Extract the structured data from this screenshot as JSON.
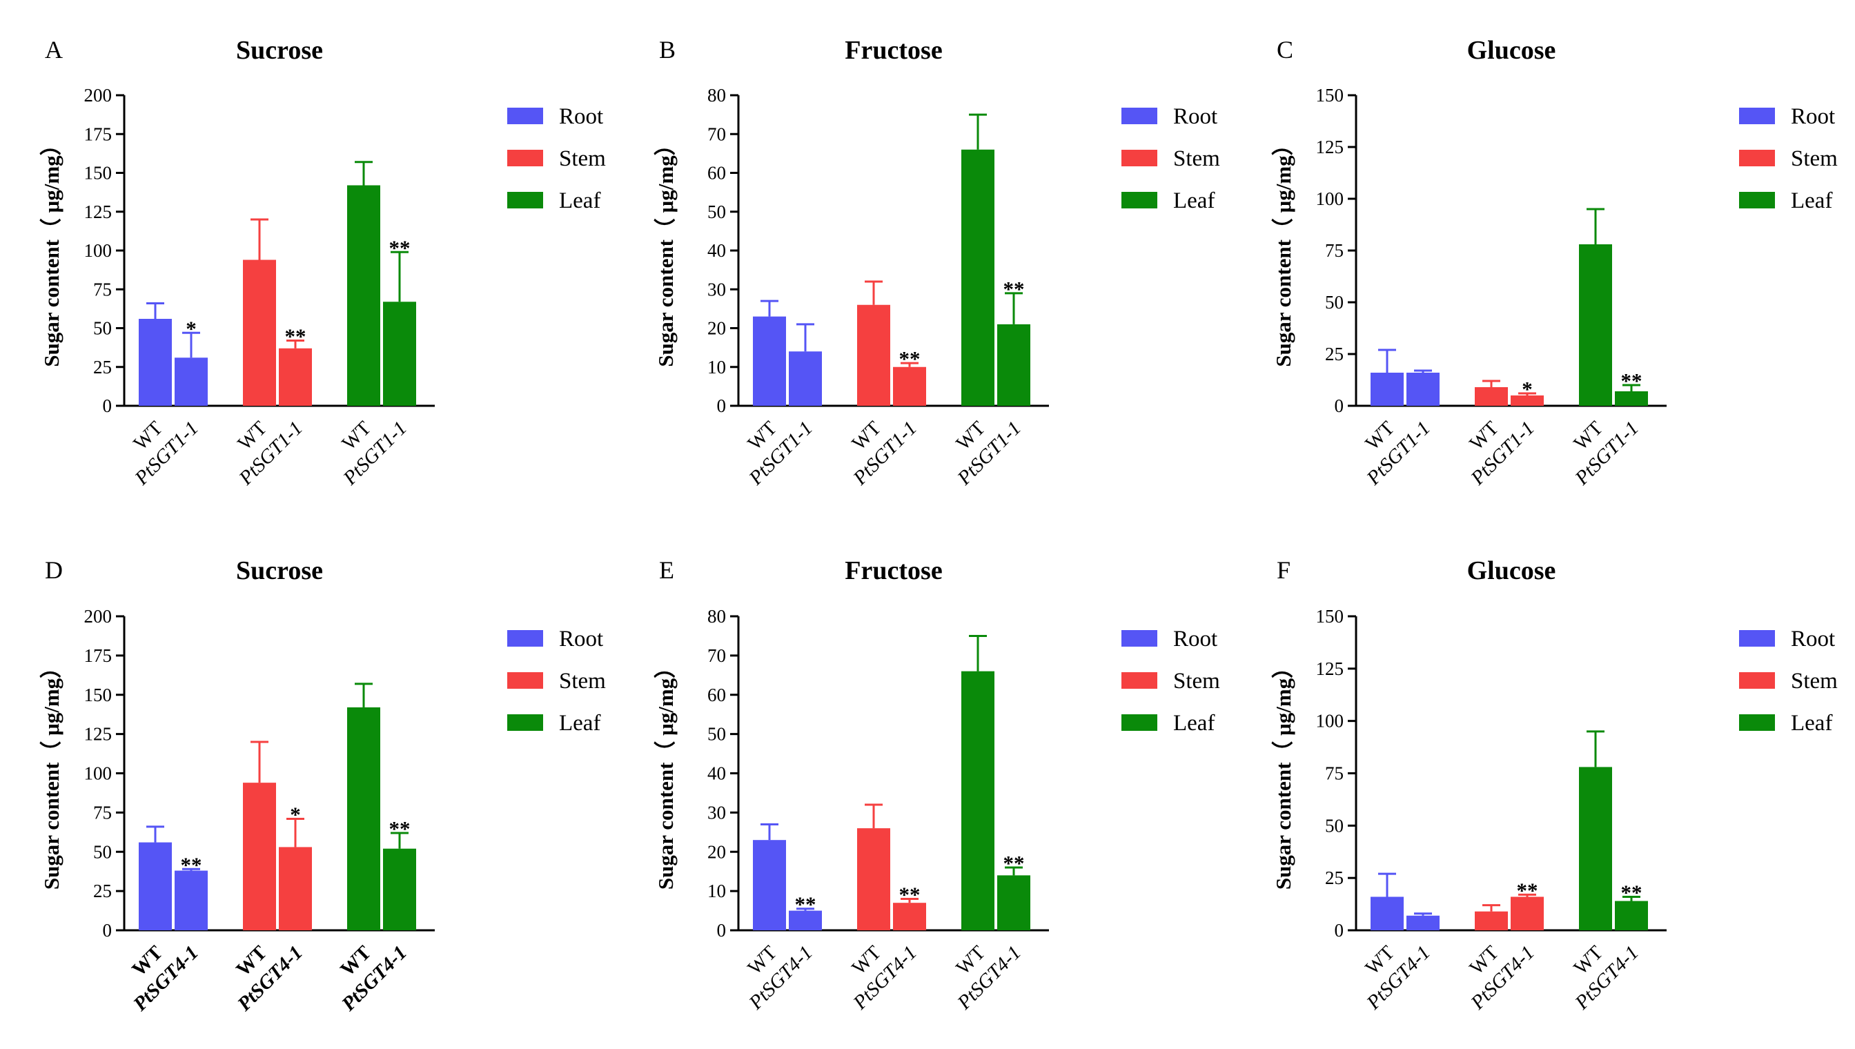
{
  "figure": {
    "legend": [
      "Root",
      "Stem",
      "Leaf"
    ],
    "colors": {
      "Root": "#5555f5",
      "Stem": "#f54040",
      "Leaf": "#0a8a0a"
    }
  },
  "chart_data": [
    {
      "panel": "A",
      "title": "Sucrose",
      "type": "bar",
      "ylabel": "Sugar content（ μg/mg）",
      "ylim": [
        0,
        200
      ],
      "yticks": [
        0,
        25,
        50,
        75,
        100,
        125,
        150,
        175,
        200
      ],
      "groups": [
        "Root",
        "Stem",
        "Leaf"
      ],
      "x_labels": [
        "WT",
        "PtSGT1-1"
      ],
      "x_label_bold": false,
      "series": [
        {
          "name": "WT",
          "values": [
            56,
            94,
            142
          ],
          "errors": [
            10,
            26,
            15
          ],
          "sig": [
            "",
            "",
            ""
          ]
        },
        {
          "name": "PtSGT1-1",
          "values": [
            31,
            37,
            67
          ],
          "errors": [
            16,
            5,
            32
          ],
          "sig": [
            "*",
            "**",
            "**"
          ]
        }
      ]
    },
    {
      "panel": "B",
      "title": "Fructose",
      "type": "bar",
      "ylabel": "Sugar content（ μg/mg）",
      "ylim": [
        0,
        80
      ],
      "yticks": [
        0,
        10,
        20,
        30,
        40,
        50,
        60,
        70,
        80
      ],
      "groups": [
        "Root",
        "Stem",
        "Leaf"
      ],
      "x_labels": [
        "WT",
        "PtSGT1-1"
      ],
      "x_label_bold": false,
      "series": [
        {
          "name": "WT",
          "values": [
            23,
            26,
            66
          ],
          "errors": [
            4,
            6,
            9
          ],
          "sig": [
            "",
            "",
            ""
          ]
        },
        {
          "name": "PtSGT1-1",
          "values": [
            14,
            10,
            21
          ],
          "errors": [
            7,
            1,
            8
          ],
          "sig": [
            "",
            "**",
            "**"
          ]
        }
      ]
    },
    {
      "panel": "C",
      "title": "Glucose",
      "type": "bar",
      "ylabel": "Sugar content（ μg/mg）",
      "ylim": [
        0,
        150
      ],
      "yticks": [
        0,
        25,
        50,
        75,
        100,
        125,
        150
      ],
      "groups": [
        "Root",
        "Stem",
        "Leaf"
      ],
      "x_labels": [
        "WT",
        "PtSGT1-1"
      ],
      "x_label_bold": false,
      "series": [
        {
          "name": "WT",
          "values": [
            16,
            9,
            78
          ],
          "errors": [
            11,
            3,
            17
          ],
          "sig": [
            "",
            "",
            ""
          ]
        },
        {
          "name": "PtSGT1-1",
          "values": [
            16,
            5,
            7
          ],
          "errors": [
            1,
            1,
            3
          ],
          "sig": [
            "",
            "*",
            "**"
          ]
        }
      ]
    },
    {
      "panel": "D",
      "title": "Sucrose",
      "type": "bar",
      "ylabel": "Sugar content（ μg/mg）",
      "ylim": [
        0,
        200
      ],
      "yticks": [
        0,
        25,
        50,
        75,
        100,
        125,
        150,
        175,
        200
      ],
      "groups": [
        "Root",
        "Stem",
        "Leaf"
      ],
      "x_labels": [
        "WT",
        "PtSGT4-1"
      ],
      "x_label_bold": true,
      "series": [
        {
          "name": "WT",
          "values": [
            56,
            94,
            142
          ],
          "errors": [
            10,
            26,
            15
          ],
          "sig": [
            "",
            "",
            ""
          ]
        },
        {
          "name": "PtSGT4-1",
          "values": [
            38,
            53,
            52
          ],
          "errors": [
            1,
            18,
            10
          ],
          "sig": [
            "**",
            "*",
            "**"
          ]
        }
      ]
    },
    {
      "panel": "E",
      "title": "Fructose",
      "type": "bar",
      "ylabel": "Sugar content（ μg/mg）",
      "ylim": [
        0,
        80
      ],
      "yticks": [
        0,
        10,
        20,
        30,
        40,
        50,
        60,
        70,
        80
      ],
      "groups": [
        "Root",
        "Stem",
        "Leaf"
      ],
      "x_labels": [
        "WT",
        "PtSGT4-1"
      ],
      "x_label_bold": false,
      "series": [
        {
          "name": "WT",
          "values": [
            23,
            26,
            66
          ],
          "errors": [
            4,
            6,
            9
          ],
          "sig": [
            "",
            "",
            ""
          ]
        },
        {
          "name": "PtSGT4-1",
          "values": [
            5,
            7,
            14
          ],
          "errors": [
            0.5,
            1,
            2
          ],
          "sig": [
            "**",
            "**",
            "**"
          ]
        }
      ]
    },
    {
      "panel": "F",
      "title": "Glucose",
      "type": "bar",
      "ylabel": "Sugar content（ μg/mg）",
      "ylim": [
        0,
        150
      ],
      "yticks": [
        0,
        25,
        50,
        75,
        100,
        125,
        150
      ],
      "groups": [
        "Root",
        "Stem",
        "Leaf"
      ],
      "x_labels": [
        "WT",
        "PtSGT4-1"
      ],
      "x_label_bold": false,
      "series": [
        {
          "name": "WT",
          "values": [
            16,
            9,
            78
          ],
          "errors": [
            11,
            3,
            17
          ],
          "sig": [
            "",
            "",
            ""
          ]
        },
        {
          "name": "PtSGT4-1",
          "values": [
            7,
            16,
            14
          ],
          "errors": [
            1,
            1,
            2
          ],
          "sig": [
            "",
            "**",
            "**"
          ]
        }
      ]
    }
  ]
}
